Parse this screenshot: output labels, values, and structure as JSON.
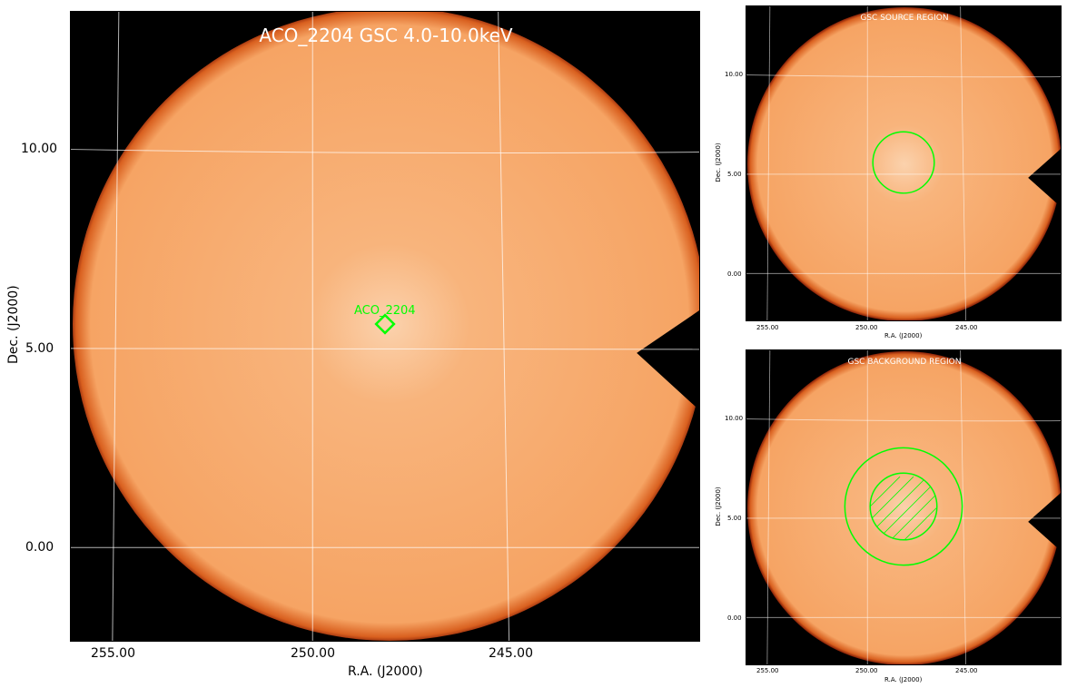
{
  "main": {
    "title": "ACO_2204 GSC 4.0-10.0keV",
    "source_label": "ACO_2204",
    "xlabel": "R.A. (J2000)",
    "ylabel": "Dec. (J2000)",
    "xticks": [
      "255.00",
      "250.00",
      "245.00"
    ],
    "yticks": [
      "10.00",
      "5.00",
      "0.00"
    ]
  },
  "source_panel": {
    "title": "GSC SOURCE REGION",
    "xlabel": "R.A. (J2000)",
    "ylabel": "Dec. (J2000)",
    "xticks": [
      "255.00",
      "250.00",
      "245.00"
    ],
    "yticks": [
      "10.00",
      "5.00",
      "0.00"
    ]
  },
  "background_panel": {
    "title": "GSC BACKGROUND REGION",
    "xlabel": "R.A. (J2000)",
    "ylabel": "Dec. (J2000)",
    "xticks": [
      "255.00",
      "250.00",
      "245.00"
    ],
    "yticks": [
      "10.00",
      "5.00",
      "0.00"
    ]
  },
  "colors": {
    "region": "#00ff00",
    "disk": "#f6a76c",
    "edge": "#b5200a",
    "grid": "#ffffff"
  }
}
